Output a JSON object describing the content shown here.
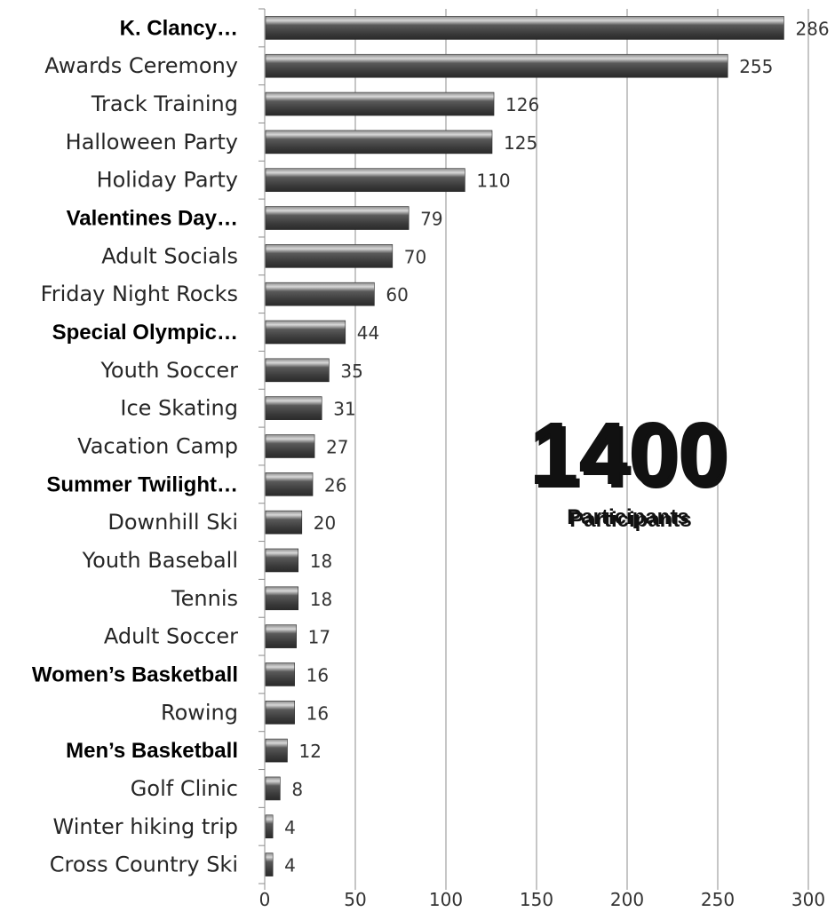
{
  "chart_data": {
    "type": "bar",
    "orientation": "horizontal",
    "categories": [
      "K. Clancy…",
      "Awards Ceremony",
      "Track Training",
      "Halloween Party",
      "Holiday Party",
      "Valentines Day…",
      "Adult Socials",
      "Friday Night Rocks",
      "Special Olympic…",
      "Youth Soccer",
      "Ice Skating",
      "Vacation Camp",
      "Summer Twilight…",
      "Downhill Ski",
      "Youth Baseball",
      "Tennis",
      "Adult Soccer",
      "Women’s Basketball",
      "Rowing",
      "Men’s Basketball",
      "Golf Clinic",
      "Winter hiking trip",
      "Cross Country Ski"
    ],
    "bold_categories": [
      "K. Clancy…",
      "Valentines Day…",
      "Special Olympic…",
      "Summer Twilight…",
      "Women’s Basketball",
      "Men’s Basketball"
    ],
    "values": [
      286,
      255,
      126,
      125,
      110,
      79,
      70,
      60,
      44,
      35,
      31,
      27,
      26,
      20,
      18,
      18,
      17,
      16,
      16,
      12,
      8,
      4,
      4
    ],
    "data_labels": [
      "286",
      "255",
      "126",
      "125",
      "110",
      "79",
      "70",
      "60",
      "44",
      "35",
      "31",
      "27",
      "26",
      "20",
      "18",
      "18",
      "17",
      "16",
      "16",
      "12",
      "8",
      "4",
      "4"
    ],
    "xlim": [
      0,
      300
    ],
    "xticks": [
      0,
      50,
      100,
      150,
      200,
      250,
      300
    ],
    "xtick_labels": [
      "0",
      "50",
      "100",
      "150",
      "200",
      "250",
      "300"
    ],
    "grid": "vertical",
    "title": "",
    "xlabel": "",
    "ylabel": "",
    "bar_color": "#4a4a4a",
    "annotation": {
      "number": "1400",
      "caption": "Participants"
    }
  }
}
